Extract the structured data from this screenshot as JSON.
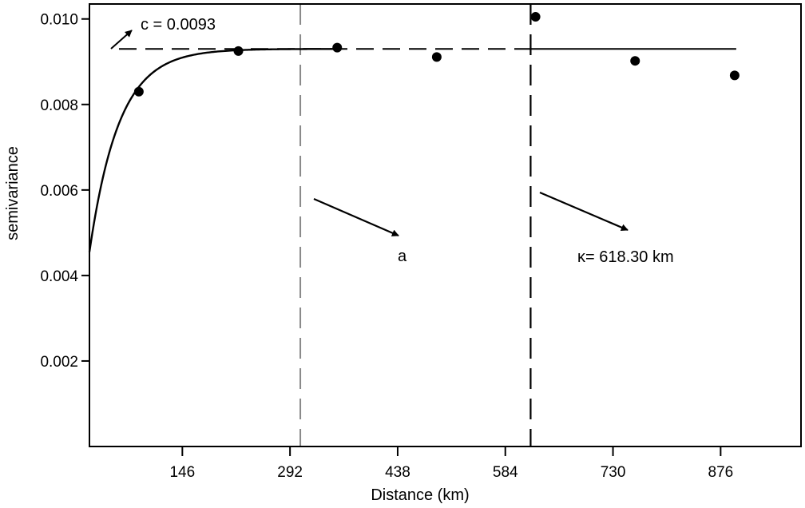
{
  "chart_data": {
    "type": "scatter",
    "title": "",
    "xlabel": "Distance (km)",
    "ylabel": "semivariance",
    "xlim": [
      20,
      985
    ],
    "ylim": [
      0.0,
      0.01035
    ],
    "xticks": [
      146,
      292,
      438,
      584,
      730,
      876
    ],
    "xtick_labels": [
      "146",
      "292",
      "438",
      "584",
      "730",
      "876"
    ],
    "yticks": [
      0.002,
      0.004,
      0.006,
      0.008,
      0.01
    ],
    "ytick_labels": [
      "0.002",
      "0.004",
      "0.006",
      "0.008",
      "0.010"
    ],
    "grid": false,
    "points": [
      {
        "x": 87,
        "y": 0.0083
      },
      {
        "x": 222,
        "y": 0.00925
      },
      {
        "x": 356,
        "y": 0.00933
      },
      {
        "x": 491,
        "y": 0.00911
      },
      {
        "x": 625,
        "y": 0.01005
      },
      {
        "x": 760,
        "y": 0.00902
      },
      {
        "x": 895,
        "y": 0.00868
      }
    ],
    "model_curve": {
      "sill": 0.0093,
      "nugget": 0.00455,
      "range_param": 40,
      "x_end": 895
    },
    "sill_line": {
      "y": 0.0093
    },
    "vlines": [
      {
        "x": 306,
        "color": "#888888"
      },
      {
        "x": 618.3,
        "color": "#000000"
      }
    ],
    "annotations": [
      {
        "text": "c = 0.0093"
      },
      {
        "text": "a"
      },
      {
        "text": "κ= 618.30 km"
      }
    ]
  }
}
